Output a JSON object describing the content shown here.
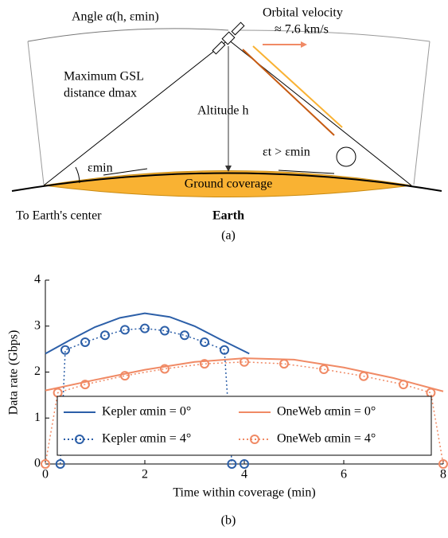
{
  "diagram": {
    "angle_label": "Angle α(h, εmin)",
    "velocity_label": "Orbital velocity",
    "velocity_value": "≈ 7.6 km/s",
    "gsl_label_1": "Maximum GSL",
    "gsl_label_2": "distance dmax",
    "altitude_label": "Altitude h",
    "eps_min_label": "εmin",
    "eps_t_label": "εt > εmin",
    "coverage_label": "Ground coverage",
    "center_label": "To Earth's center",
    "earth_label": "Earth",
    "caption": "(a)"
  },
  "chart_data": {
    "type": "line",
    "caption": "(b)",
    "xlabel": "Time within coverage (min)",
    "ylabel": "Data rate (Gbps)",
    "xlim": [
      0,
      8
    ],
    "ylim": [
      0,
      4
    ],
    "xticks": [
      0,
      2,
      4,
      6,
      8
    ],
    "yticks": [
      0,
      1,
      2,
      3,
      4
    ],
    "series": [
      {
        "name": "Kepler αmin = 0°",
        "color": "#2c5fa8",
        "style": "solid",
        "marker": "none",
        "x": [
          0,
          0.5,
          1,
          1.5,
          2,
          2.5,
          3,
          3.5,
          4.1
        ],
        "values": [
          2.4,
          2.7,
          2.98,
          3.18,
          3.28,
          3.2,
          3.0,
          2.72,
          2.4
        ]
      },
      {
        "name": "Kepler αmin = 4°",
        "color": "#2c5fa8",
        "style": "dotted",
        "marker": "circle",
        "x": [
          0.3,
          0.4,
          0.8,
          1.2,
          1.6,
          2.0,
          2.4,
          2.8,
          3.2,
          3.6,
          3.75,
          4.0
        ],
        "values": [
          0,
          2.48,
          2.65,
          2.8,
          2.92,
          2.95,
          2.9,
          2.8,
          2.65,
          2.48,
          0,
          0
        ]
      },
      {
        "name": "OneWeb αmin = 0°",
        "color": "#f08a65",
        "style": "solid",
        "marker": "none",
        "x": [
          0,
          1,
          2,
          3,
          4,
          5,
          6,
          7,
          8
        ],
        "values": [
          1.6,
          1.83,
          2.05,
          2.22,
          2.3,
          2.27,
          2.1,
          1.87,
          1.58
        ]
      },
      {
        "name": "OneWeb αmin = 4°",
        "color": "#f08a65",
        "style": "dotted",
        "marker": "circle",
        "x": [
          0,
          0.25,
          0.8,
          1.6,
          2.4,
          3.2,
          4.0,
          4.8,
          5.6,
          6.4,
          7.2,
          7.75,
          8.0
        ],
        "values": [
          0,
          1.55,
          1.73,
          1.92,
          2.07,
          2.18,
          2.22,
          2.18,
          2.06,
          1.91,
          1.73,
          1.55,
          0
        ]
      }
    ]
  }
}
